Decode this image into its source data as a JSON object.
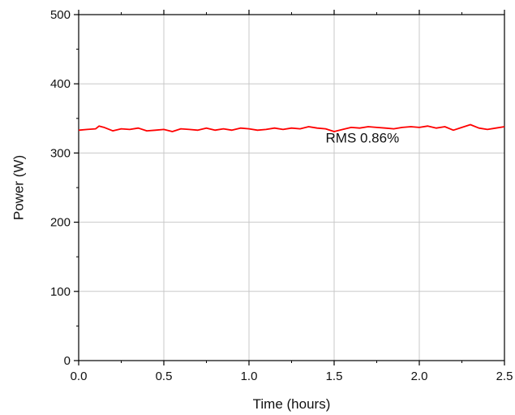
{
  "chart_data": {
    "type": "line",
    "title": "",
    "xlabel": "Time (hours)",
    "ylabel": "Power (W)",
    "xlim": [
      0.0,
      2.5
    ],
    "ylim": [
      0,
      500
    ],
    "xticks": [
      0.0,
      0.5,
      1.0,
      1.5,
      2.0,
      2.5
    ],
    "xtick_labels": [
      "0.0",
      "0.5",
      "1.0",
      "1.5",
      "2.0",
      "2.5"
    ],
    "yticks": [
      0,
      100,
      200,
      300,
      400,
      500
    ],
    "ytick_labels": [
      "0",
      "100",
      "200",
      "300",
      "400",
      "500"
    ],
    "grid": true,
    "legend": "none",
    "series": [
      {
        "color": "#ff0000",
        "x": [
          0.0,
          0.05,
          0.1,
          0.12,
          0.15,
          0.2,
          0.25,
          0.3,
          0.35,
          0.4,
          0.45,
          0.5,
          0.55,
          0.6,
          0.65,
          0.7,
          0.75,
          0.8,
          0.85,
          0.9,
          0.95,
          1.0,
          1.05,
          1.1,
          1.15,
          1.2,
          1.25,
          1.3,
          1.35,
          1.4,
          1.45,
          1.5,
          1.55,
          1.6,
          1.65,
          1.7,
          1.75,
          1.8,
          1.85,
          1.9,
          1.95,
          2.0,
          2.05,
          2.1,
          2.15,
          2.2,
          2.25,
          2.3,
          2.35,
          2.4,
          2.45,
          2.5
        ],
        "y": [
          333,
          334,
          335,
          339,
          337,
          332,
          335,
          334,
          336,
          332,
          333,
          334,
          331,
          335,
          334,
          333,
          336,
          333,
          335,
          333,
          336,
          335,
          333,
          334,
          336,
          334,
          336,
          335,
          338,
          336,
          335,
          331,
          334,
          337,
          336,
          338,
          337,
          336,
          335,
          337,
          338,
          337,
          339,
          336,
          338,
          333,
          337,
          341,
          336,
          334,
          336,
          338
        ]
      }
    ],
    "annotations": [
      {
        "text": "RMS 0.86%",
        "x": 1.45,
        "y": 315
      }
    ]
  }
}
